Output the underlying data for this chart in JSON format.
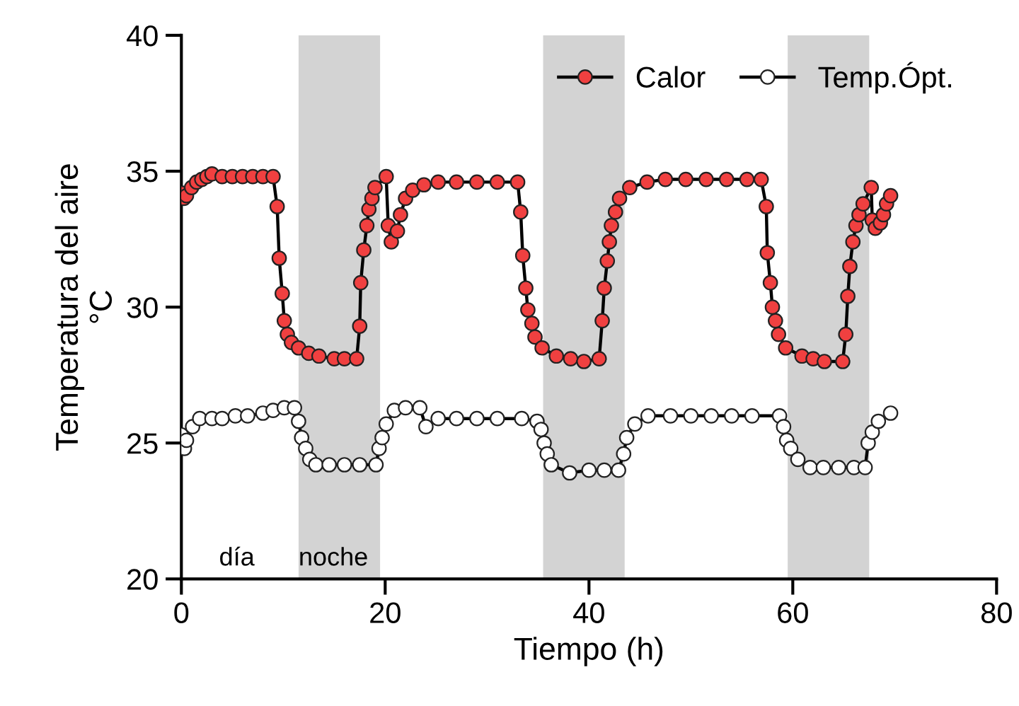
{
  "chart_data": {
    "type": "line",
    "xlabel": "Tiempo (h)",
    "ylabel": "Temperatura del aire\n°C",
    "xlim": [
      0,
      80
    ],
    "ylim": [
      20,
      40
    ],
    "xticks": [
      0,
      20,
      40,
      60,
      80
    ],
    "yticks": [
      20,
      25,
      30,
      35,
      40
    ],
    "grid": false,
    "legend": "top right",
    "marker": "circle",
    "line_style": "solid",
    "bands": [
      {
        "axis": "x",
        "from": 11.5,
        "to": 19.5,
        "label": "noche",
        "color": "#d3d3d3"
      },
      {
        "axis": "x",
        "from": 35.5,
        "to": 43.5,
        "color": "#d3d3d3"
      },
      {
        "axis": "x",
        "from": 59.5,
        "to": 67.5,
        "color": "#d3d3d3"
      }
    ],
    "annotations": [
      "día"
    ],
    "series": [
      {
        "name": "Calor",
        "color": "#f04040",
        "x": [
          0,
          0.25,
          0.5,
          1,
          1.5,
          2,
          2.5,
          3,
          4,
          5,
          6,
          7,
          8,
          9,
          9.4,
          9.6,
          9.9,
          10.1,
          10.4,
          10.8,
          11.5,
          12.5,
          13.5,
          15,
          16,
          17.2,
          17.5,
          17.6,
          17.9,
          18.2,
          18.4,
          18.7,
          19.0,
          20.1,
          20.3,
          20.6,
          21.2,
          21.5,
          22.0,
          22.7,
          23.8,
          25.2,
          27,
          29,
          31,
          33.0,
          33.3,
          33.5,
          33.8,
          34.0,
          34.4,
          34.7,
          35.4,
          36.8,
          38.2,
          39.5,
          41.0,
          41.3,
          41.5,
          41.8,
          42.0,
          42.2,
          42.6,
          43.0,
          44.0,
          45.7,
          47.5,
          49.5,
          51.5,
          53.5,
          55.5,
          56.9,
          57.4,
          57.5,
          57.8,
          58.0,
          58.3,
          58.6,
          59.3,
          60.9,
          62,
          63.1,
          64.9,
          65.2,
          65.4,
          65.6,
          65.9,
          66.2,
          66.5,
          66.9,
          67.7,
          67.8,
          68.1,
          68.6,
          68.9,
          69.2,
          69.6
        ],
        "values": [
          34.2,
          34.0,
          34.1,
          34.4,
          34.6,
          34.7,
          34.8,
          34.9,
          34.8,
          34.8,
          34.8,
          34.8,
          34.8,
          34.8,
          33.7,
          31.8,
          30.5,
          29.5,
          29.0,
          28.7,
          28.5,
          28.3,
          28.2,
          28.1,
          28.1,
          28.1,
          29.3,
          30.9,
          32.1,
          33.0,
          33.6,
          34.0,
          34.4,
          34.8,
          33.0,
          32.4,
          32.8,
          33.4,
          34.0,
          34.3,
          34.5,
          34.6,
          34.6,
          34.6,
          34.6,
          34.6,
          33.5,
          31.9,
          30.7,
          29.9,
          29.4,
          28.9,
          28.5,
          28.2,
          28.1,
          28.0,
          28.1,
          29.5,
          30.7,
          31.7,
          32.4,
          33.0,
          33.5,
          34.0,
          34.4,
          34.6,
          34.7,
          34.7,
          34.7,
          34.7,
          34.7,
          34.7,
          33.7,
          32.0,
          30.9,
          30.0,
          29.5,
          29.0,
          28.5,
          28.2,
          28.1,
          28.0,
          28.0,
          29.0,
          30.4,
          31.5,
          32.4,
          33.0,
          33.4,
          33.8,
          34.4,
          33.2,
          32.9,
          33.1,
          33.4,
          33.8,
          34.1
        ]
      },
      {
        "name": "Temp.Ópt.",
        "color": "#ffffff",
        "x": [
          0,
          0.3,
          0.5,
          1.1,
          1.8,
          3,
          4,
          5.3,
          6.5,
          8,
          9,
          10.1,
          11.1,
          11.5,
          11.8,
          12.2,
          12.6,
          13.2,
          14.5,
          16,
          17.5,
          19.1,
          19.4,
          19.7,
          20.1,
          20.9,
          22,
          23.4,
          24.0,
          25.2,
          27,
          29,
          31,
          33.4,
          34.9,
          35.3,
          35.6,
          35.9,
          36.3,
          38.1,
          40.0,
          41.5,
          42.9,
          43.4,
          43.7,
          44.5,
          45.8,
          48,
          50,
          52,
          54,
          56,
          58.7,
          59.1,
          59.4,
          59.8,
          60.5,
          61.7,
          63,
          64.5,
          66,
          67.1,
          67.4,
          67.8,
          68.4,
          69.6
        ],
        "values": [
          25.3,
          24.8,
          25.1,
          25.6,
          25.9,
          25.9,
          25.9,
          26.0,
          26.0,
          26.1,
          26.2,
          26.3,
          26.3,
          25.8,
          25.2,
          24.8,
          24.4,
          24.2,
          24.2,
          24.2,
          24.2,
          24.2,
          24.8,
          25.2,
          25.7,
          26.2,
          26.3,
          26.3,
          25.6,
          25.9,
          25.9,
          25.9,
          25.9,
          25.9,
          25.8,
          25.5,
          25.0,
          24.6,
          24.2,
          23.9,
          24.0,
          24.0,
          24.0,
          24.6,
          25.2,
          25.7,
          26.0,
          26.0,
          26.0,
          26.0,
          26.0,
          26.0,
          26.0,
          25.6,
          25.1,
          24.8,
          24.4,
          24.1,
          24.1,
          24.1,
          24.1,
          24.1,
          25.0,
          25.4,
          25.8,
          26.1
        ]
      }
    ]
  }
}
